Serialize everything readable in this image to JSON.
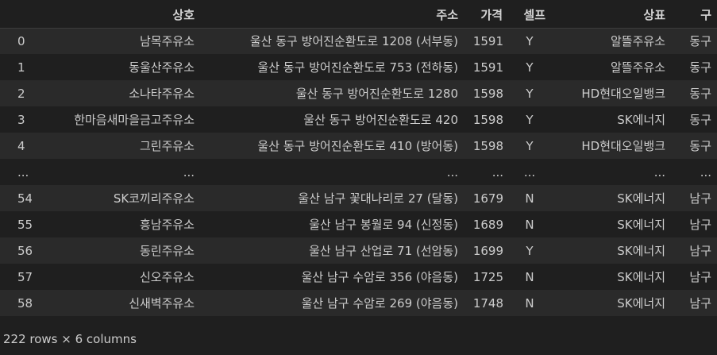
{
  "table": {
    "columns": [
      "",
      "상호",
      "주소",
      "가격",
      "셀프",
      "상표",
      "구"
    ],
    "rows": [
      [
        "0",
        "남목주유소",
        "울산 동구 방어진순환도로 1208 (서부동)",
        "1591",
        "Y",
        "알뜰주유소",
        "동구"
      ],
      [
        "1",
        "동울산주유소",
        "울산 동구 방어진순환도로 753 (전하동)",
        "1591",
        "Y",
        "알뜰주유소",
        "동구"
      ],
      [
        "2",
        "소나타주유소",
        "울산 동구 방어진순환도로 1280",
        "1598",
        "Y",
        "HD현대오일뱅크",
        "동구"
      ],
      [
        "3",
        "한마음새마을금고주유소",
        "울산 동구 방어진순환도로 420",
        "1598",
        "Y",
        "SK에너지",
        "동구"
      ],
      [
        "4",
        "그린주유소",
        "울산 동구 방어진순환도로 410 (방어동)",
        "1598",
        "Y",
        "HD현대오일뱅크",
        "동구"
      ],
      [
        "...",
        "...",
        "...",
        "...",
        "...",
        "...",
        "..."
      ],
      [
        "54",
        "SK코끼리주유소",
        "울산 남구 꽃대나리로 27 (달동)",
        "1679",
        "N",
        "SK에너지",
        "남구"
      ],
      [
        "55",
        "흥남주유소",
        "울산 남구 봉월로 94 (신정동)",
        "1689",
        "N",
        "SK에너지",
        "남구"
      ],
      [
        "56",
        "동린주유소",
        "울산 남구 산업로 71 (선암동)",
        "1699",
        "Y",
        "SK에너지",
        "남구"
      ],
      [
        "57",
        "신오주유소",
        "울산 남구 수암로 356 (야음동)",
        "1725",
        "N",
        "SK에너지",
        "남구"
      ],
      [
        "58",
        "신새벽주유소",
        "울산 남구 수암로 269 (야음동)",
        "1748",
        "N",
        "SK에너지",
        "남구"
      ]
    ]
  },
  "summary": "222 rows × 6 columns",
  "colors": {
    "background": "#1f1f1f",
    "stripe": "#2a2a2a",
    "text": "#cccccc"
  }
}
